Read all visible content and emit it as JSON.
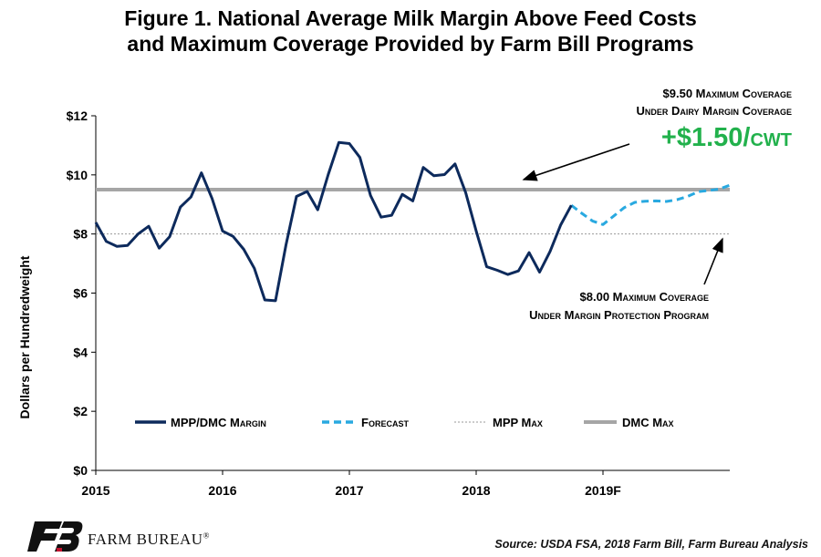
{
  "title": {
    "line1": "Figure 1. National Average Milk Margin Above Feed Costs",
    "line2": "and Maximum Coverage Provided by Farm Bill Programs"
  },
  "source": "Source: USDA FSA, 2018 Farm Bill, Farm Bureau Analysis",
  "logo": {
    "text": "FARM BUREAU",
    "mark": "®"
  },
  "colors": {
    "margin": "#0d2a5c",
    "forecast": "#29a9e0",
    "mpp": "#9a9a9a",
    "dmc": "#a6a6a6",
    "plus": "#22b14c"
  },
  "chart_data": {
    "type": "line",
    "ylabel": "Dollars per Hundredweight",
    "ylim": [
      0,
      12
    ],
    "yticks": [
      0,
      2,
      4,
      6,
      8,
      10,
      12
    ],
    "ytick_labels": [
      "$0",
      "$2",
      "$4",
      "$6",
      "$8",
      "$10",
      "$12"
    ],
    "xlim": [
      2015,
      2020
    ],
    "xticks": [
      2015,
      2016,
      2017,
      2018,
      2019
    ],
    "xtick_labels": [
      "2015",
      "2016",
      "2017",
      "2018",
      "2019F"
    ],
    "grid": false,
    "series": [
      {
        "name": "MPP/DMC Margin",
        "x": [
          2015.0,
          2015.083,
          2015.167,
          2015.25,
          2015.333,
          2015.417,
          2015.5,
          2015.583,
          2015.667,
          2015.75,
          2015.833,
          2015.917,
          2016.0,
          2016.083,
          2016.167,
          2016.25,
          2016.333,
          2016.417,
          2016.5,
          2016.583,
          2016.667,
          2016.75,
          2016.833,
          2016.917,
          2017.0,
          2017.083,
          2017.167,
          2017.25,
          2017.333,
          2017.417,
          2017.5,
          2017.583,
          2017.667,
          2017.75,
          2017.833,
          2017.917,
          2018.0,
          2018.083,
          2018.167,
          2018.25,
          2018.333,
          2018.417,
          2018.5,
          2018.583,
          2018.667,
          2018.75
        ],
        "values": [
          8.39,
          7.75,
          7.58,
          7.61,
          8.0,
          8.26,
          7.52,
          7.91,
          8.91,
          9.25,
          10.07,
          9.2,
          8.1,
          7.92,
          7.48,
          6.84,
          5.77,
          5.74,
          7.63,
          9.27,
          9.44,
          8.82,
          10.01,
          11.1,
          11.06,
          10.59,
          9.3,
          8.57,
          8.63,
          9.34,
          9.12,
          10.25,
          9.97,
          10.01,
          10.37,
          9.4,
          8.1,
          6.89,
          6.77,
          6.63,
          6.75,
          7.37,
          6.71,
          7.41,
          8.31,
          8.97
        ]
      },
      {
        "name": "Forecast",
        "x": [
          2018.75,
          2018.833,
          2018.917,
          2019.0,
          2019.083,
          2019.167,
          2019.25,
          2019.333,
          2019.417,
          2019.5,
          2019.583,
          2019.667,
          2019.75,
          2019.833,
          2019.917,
          2020.0
        ],
        "values": [
          8.97,
          8.7,
          8.44,
          8.32,
          8.6,
          8.89,
          9.07,
          9.11,
          9.12,
          9.1,
          9.16,
          9.27,
          9.43,
          9.47,
          9.52,
          9.65
        ]
      },
      {
        "name": "MPP Max",
        "value": 8.0
      },
      {
        "name": "DMC Max",
        "value": 9.5
      }
    ],
    "legend": {
      "placement": "bottom",
      "items": [
        "MPP/DMC Margin",
        "Forecast",
        "MPP Max",
        "DMC Max"
      ]
    },
    "annotations": {
      "dmc_line1": "$9.50 Maximum Coverage",
      "dmc_line2": "Under Dairy Margin Coverage",
      "plus": "+$1.50/cwt",
      "mpp_line1": "$8.00 Maximum Coverage",
      "mpp_line2": "Under Margin Protection Program"
    }
  }
}
